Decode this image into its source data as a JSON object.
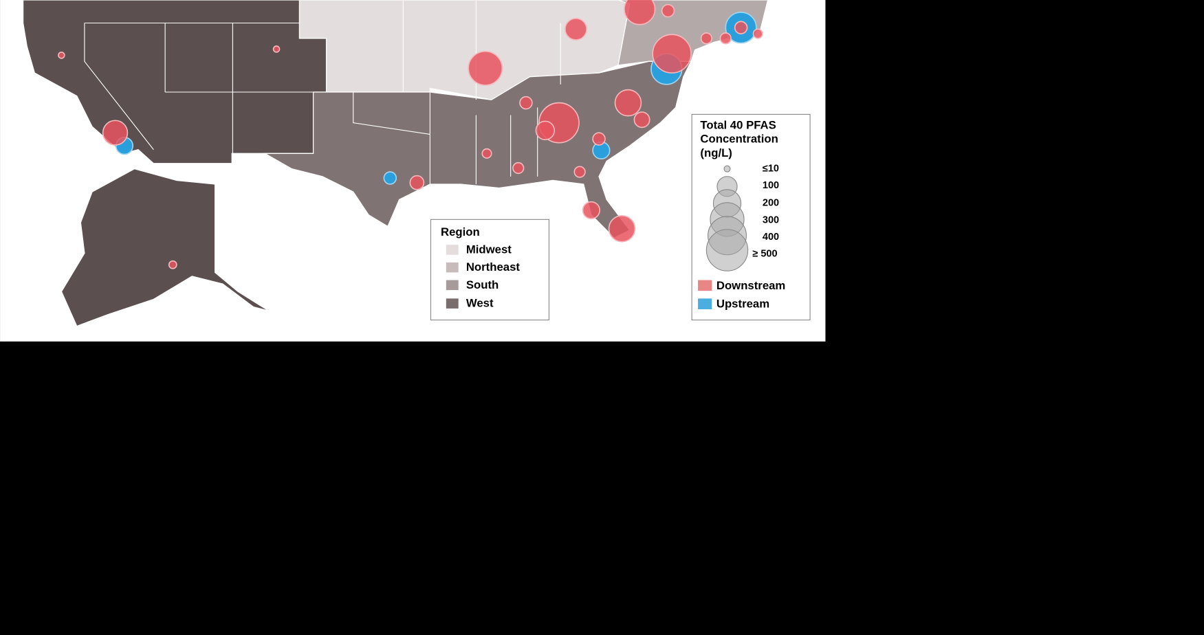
{
  "region_legend": {
    "title": "Region",
    "items": [
      "Midwest",
      "Northeast",
      "South",
      "West"
    ]
  },
  "concentration_legend": {
    "title_lines": [
      "Total 40 PFAS",
      "Concentration",
      "(ng/L)"
    ],
    "sizes": [
      "≤10",
      "100",
      "200",
      "300",
      "400",
      "≥ 500"
    ],
    "types": [
      "Downstream",
      "Upstream"
    ]
  }
}
